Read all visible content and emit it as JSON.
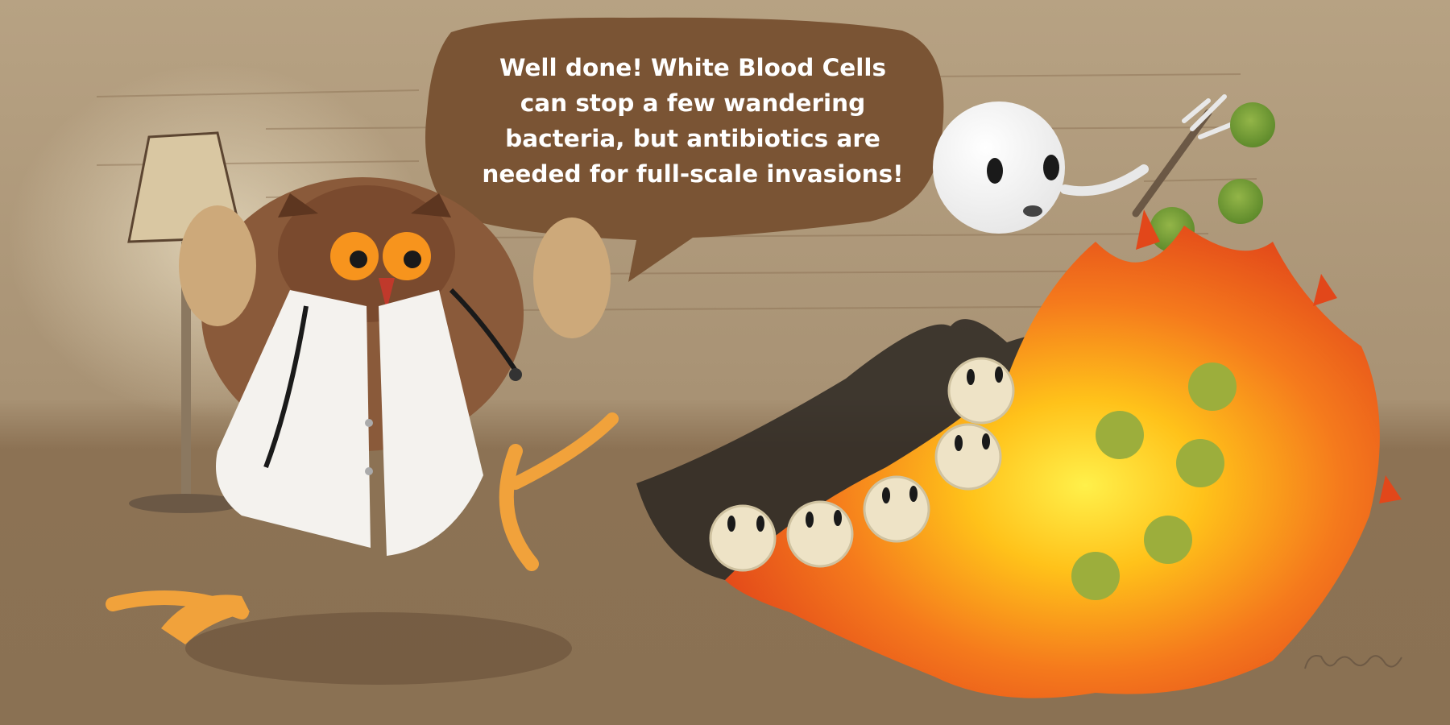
{
  "speech_bubble": {
    "lines": [
      "Well done! White Blood Cells",
      "can stop a few wandering",
      "bacteria, but antibiotics are",
      "needed for full-scale invasions!"
    ]
  },
  "signature": {
    "text": "richa"
  },
  "colors": {
    "wall": "#b9a486",
    "floor": "#8f7556",
    "bubble": "#7a5434",
    "fire_orange": "#f26a1b",
    "fire_yellow": "#ffd21a",
    "pill": "#eee3c6",
    "bacteria_green": "#7ea33a",
    "owl_eyes": "#f7941d"
  },
  "characters": [
    {
      "name": "owl-doctor"
    },
    {
      "name": "white-blood-cell"
    },
    {
      "name": "antibiotic-pill"
    },
    {
      "name": "bacteria"
    }
  ]
}
